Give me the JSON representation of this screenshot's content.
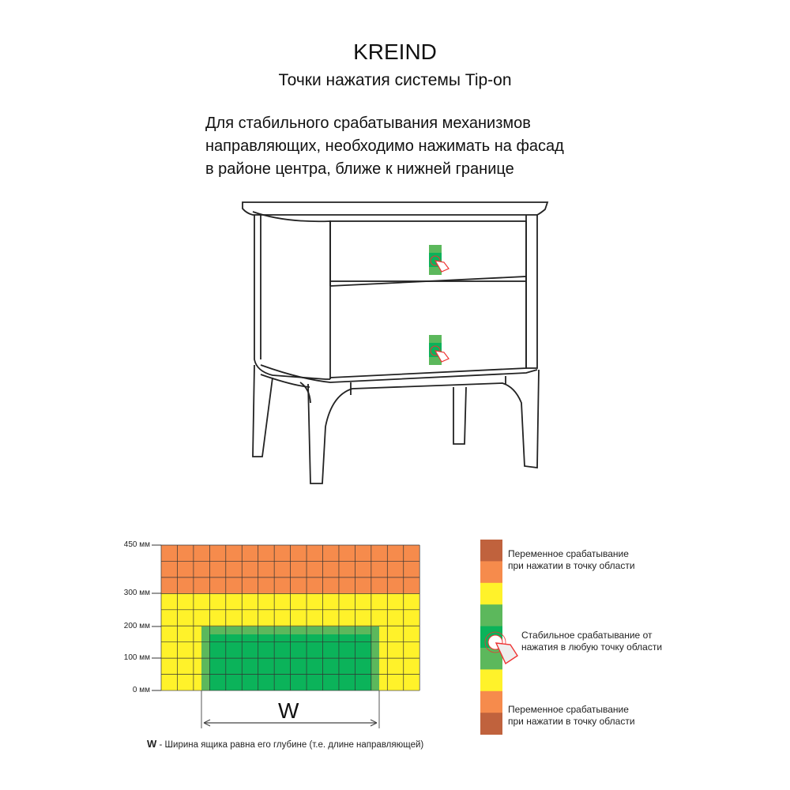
{
  "brand": "KREIND",
  "subtitle": "Точки нажатия системы Tip-on",
  "instruction": [
    "Для стабильного срабатывания механизмов",
    "направляющих, необходимо нажимать на фасад",
    "в районе центра, ближе к нижней границе"
  ],
  "zone_chart": {
    "y_labels": [
      "450 мм",
      "300 мм",
      "200 мм",
      "100 мм",
      "0 мм"
    ],
    "w_label": "W",
    "w_note_key": "W",
    "w_note_text": " - Ширина ящика равна его глубине (т.е. длине направляющей)"
  },
  "legend": {
    "variable_top": [
      "Переменное срабатывание",
      "при нажатии в точку области"
    ],
    "stable": [
      "Стабильное срабатывание от",
      "нажатия в любую точку области"
    ],
    "variable_bottom": [
      "Переменное срабатывание",
      "при нажатии в точку области"
    ]
  },
  "colors": {
    "orange": "#f68b4c",
    "yellow": "#fff22a",
    "green_light": "#5cb85c",
    "green_dark": "#0bb35a",
    "brown": "#c0623d"
  }
}
